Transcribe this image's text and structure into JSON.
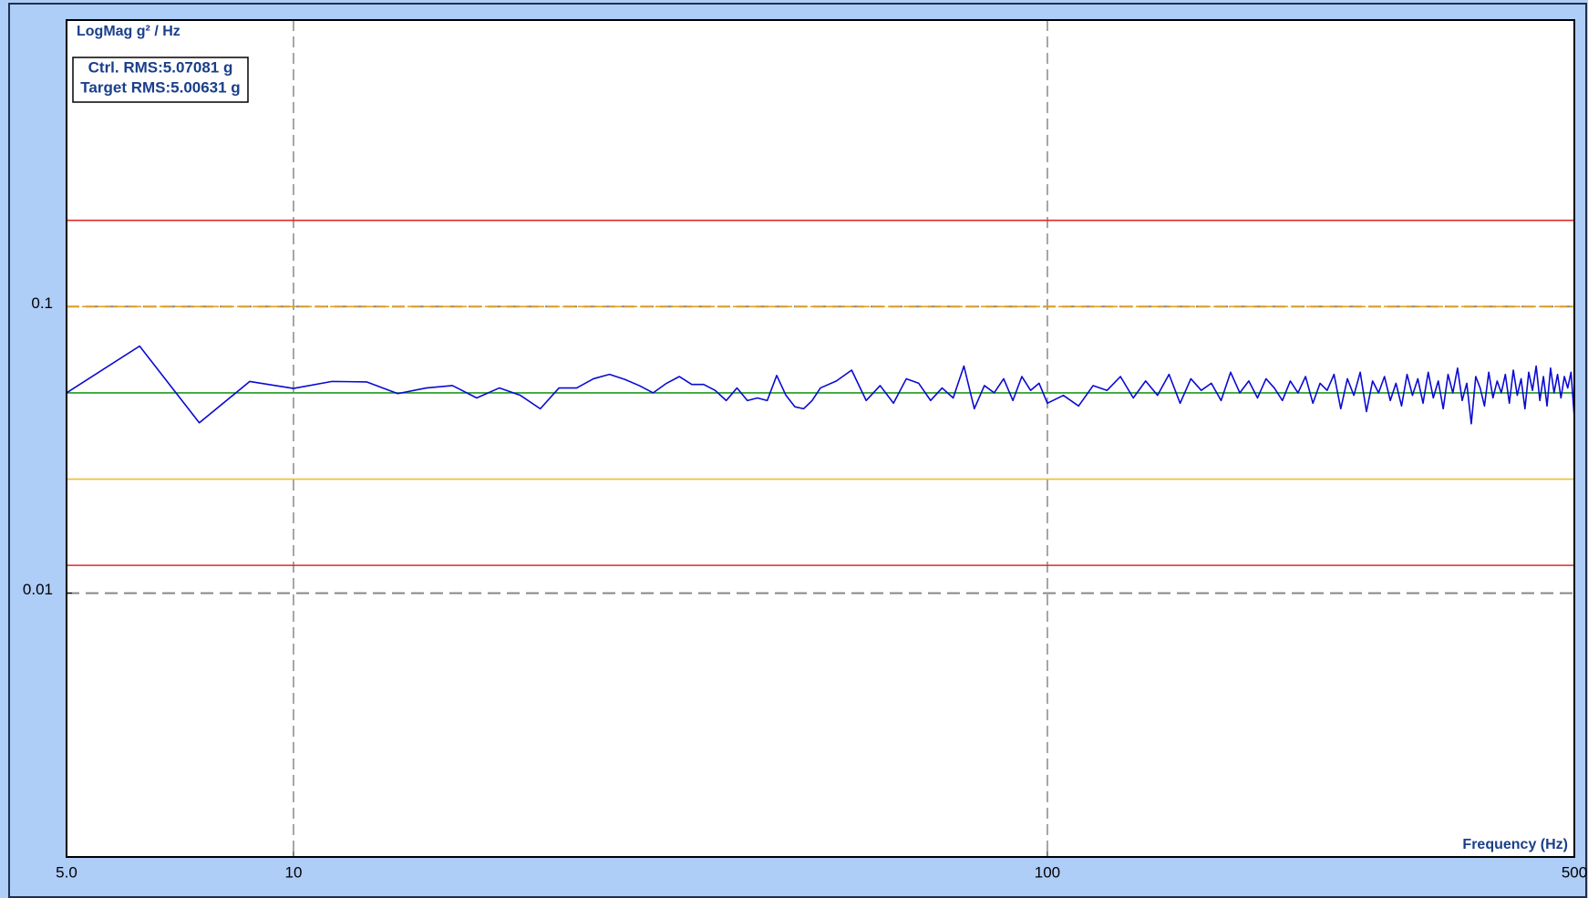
{
  "chart_data": {
    "type": "line",
    "ylabel": "LogMag g² / Hz",
    "xlabel": "Frequency (Hz)",
    "annotations": [
      "Ctrl. RMS:5.07081 g",
      "Target RMS:5.00631 g"
    ],
    "xscale": "log",
    "yscale": "log",
    "xlim": [
      5,
      500
    ],
    "ylim": [
      0.0012,
      1
    ],
    "xticks": [
      {
        "value": 5,
        "label": "5.0"
      },
      10,
      100,
      500
    ],
    "yticks": [
      0.01,
      0.1
    ],
    "grid": true,
    "reference_lines": [
      {
        "value": 0.2,
        "color": "#e02828",
        "dashed": false
      },
      {
        "value": 0.1,
        "color": "#e0a020",
        "dashed": true
      },
      {
        "value": 0.05,
        "color": "#1e9a1e",
        "dashed": false
      },
      {
        "value": 0.025,
        "color": "#e8c030",
        "dashed": false
      },
      {
        "value": 0.0125,
        "color": "#e02828",
        "dashed": false
      }
    ],
    "x": [
      5,
      6.25,
      7.5,
      8.75,
      10,
      11.25,
      12.5,
      13.75,
      15,
      16.25,
      17.5,
      18.75,
      20,
      21.25,
      22.5,
      23.75,
      25,
      26.25,
      27.5,
      28.75,
      30,
      31.25,
      32.5,
      33.75,
      35,
      36.25,
      37.5,
      38.75,
      40,
      41.25,
      42.5,
      43.75,
      45,
      46.25,
      47.5,
      48.75,
      50,
      52.5,
      55,
      57.5,
      60,
      62.5,
      65,
      67.5,
      70,
      72.5,
      75,
      77.5,
      80,
      82.5,
      85,
      87.5,
      90,
      92.5,
      95,
      97.5,
      100,
      105,
      110,
      115,
      120,
      125,
      130,
      135,
      140,
      145,
      150,
      155,
      160,
      165,
      170,
      175,
      180,
      185,
      190,
      195,
      200,
      205,
      210,
      215,
      220,
      225,
      230,
      235,
      240,
      245,
      250,
      255,
      260,
      265,
      270,
      275,
      280,
      285,
      290,
      295,
      300,
      305,
      310,
      315,
      320,
      325,
      330,
      335,
      340,
      345,
      350,
      355,
      360,
      365,
      370,
      375,
      380,
      385,
      390,
      395,
      400,
      405,
      410,
      415,
      420,
      425,
      430,
      435,
      440,
      445,
      450,
      455,
      460,
      465,
      470,
      475,
      480,
      485,
      490,
      495,
      500
    ],
    "series": [
      {
        "color": "#0a0ad2",
        "values": [
          0.05,
          0.0728,
          0.0393,
          0.0548,
          0.0518,
          0.0548,
          0.0546,
          0.0497,
          0.052,
          0.053,
          0.048,
          0.052,
          0.049,
          0.044,
          0.052,
          0.052,
          0.056,
          0.058,
          0.0557,
          0.053,
          0.05,
          0.054,
          0.057,
          0.0535,
          0.0535,
          0.051,
          0.047,
          0.052,
          0.047,
          0.048,
          0.047,
          0.0575,
          0.049,
          0.0447,
          0.044,
          0.047,
          0.052,
          0.055,
          0.06,
          0.047,
          0.053,
          0.046,
          0.056,
          0.054,
          0.047,
          0.052,
          0.048,
          0.062,
          0.044,
          0.053,
          0.05,
          0.056,
          0.047,
          0.057,
          0.051,
          0.054,
          0.046,
          0.049,
          0.045,
          0.053,
          0.051,
          0.057,
          0.048,
          0.055,
          0.049,
          0.058,
          0.046,
          0.056,
          0.051,
          0.054,
          0.047,
          0.059,
          0.05,
          0.055,
          0.048,
          0.056,
          0.052,
          0.047,
          0.055,
          0.05,
          0.057,
          0.046,
          0.054,
          0.051,
          0.058,
          0.044,
          0.056,
          0.049,
          0.059,
          0.043,
          0.055,
          0.05,
          0.057,
          0.047,
          0.054,
          0.045,
          0.058,
          0.049,
          0.056,
          0.046,
          0.059,
          0.048,
          0.055,
          0.044,
          0.058,
          0.05,
          0.061,
          0.047,
          0.054,
          0.039,
          0.057,
          0.052,
          0.045,
          0.059,
          0.048,
          0.055,
          0.05,
          0.058,
          0.046,
          0.06,
          0.049,
          0.056,
          0.044,
          0.059,
          0.051,
          0.062,
          0.047,
          0.057,
          0.045,
          0.061,
          0.05,
          0.058,
          0.048,
          0.057,
          0.052,
          0.059,
          0.041
        ]
      }
    ]
  }
}
